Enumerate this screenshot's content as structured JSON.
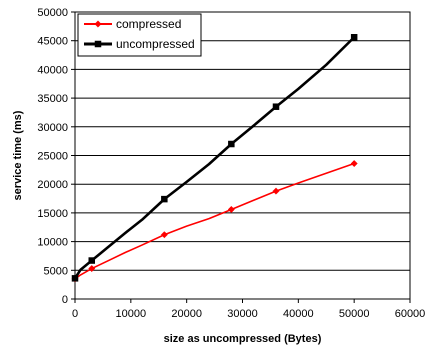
{
  "chart_data": {
    "type": "line",
    "title": "",
    "xlabel": "size as uncompressed (Bytes)",
    "ylabel": "service time (ms)",
    "xlim": [
      0,
      60000
    ],
    "ylim": [
      0,
      50000
    ],
    "x_ticks": [
      0,
      10000,
      20000,
      30000,
      40000,
      50000,
      60000
    ],
    "y_ticks": [
      0,
      5000,
      10000,
      15000,
      20000,
      25000,
      30000,
      35000,
      40000,
      45000,
      50000
    ],
    "x_tick_labels": [
      "0",
      "10000",
      "20000",
      "30000",
      "40000",
      "50000",
      "60000"
    ],
    "y_tick_labels": [
      "0",
      "5000",
      "10000",
      "15000",
      "20000",
      "25000",
      "30000",
      "35000",
      "40000",
      "45000",
      "50000"
    ],
    "grid": "horizontal major gridlines",
    "legend_position": "top-left",
    "series": [
      {
        "name": "compressed",
        "color": "#ff0000",
        "marker": "diamond",
        "points": [
          {
            "x": 0,
            "y": 3500
          },
          {
            "x": 1000,
            "y": 4200
          },
          {
            "x": 3000,
            "y": 5300
          },
          {
            "x": 6000,
            "y": 6700
          },
          {
            "x": 9000,
            "y": 8100
          },
          {
            "x": 12000,
            "y": 9400
          },
          {
            "x": 16000,
            "y": 11200
          },
          {
            "x": 20000,
            "y": 12700
          },
          {
            "x": 24000,
            "y": 14000
          },
          {
            "x": 28000,
            "y": 15600
          },
          {
            "x": 32000,
            "y": 17200
          },
          {
            "x": 36000,
            "y": 18800
          },
          {
            "x": 40000,
            "y": 20200
          },
          {
            "x": 45000,
            "y": 21900
          },
          {
            "x": 50000,
            "y": 23600
          }
        ],
        "marked_x": [
          0,
          3000,
          16000,
          28000,
          36000,
          50000
        ]
      },
      {
        "name": "uncompressed",
        "color": "#000000",
        "marker": "square",
        "points": [
          {
            "x": 0,
            "y": 3600
          },
          {
            "x": 1000,
            "y": 5100
          },
          {
            "x": 3000,
            "y": 6700
          },
          {
            "x": 6000,
            "y": 9100
          },
          {
            "x": 9000,
            "y": 11500
          },
          {
            "x": 12000,
            "y": 13800
          },
          {
            "x": 16000,
            "y": 17400
          },
          {
            "x": 20000,
            "y": 20400
          },
          {
            "x": 24000,
            "y": 23500
          },
          {
            "x": 28000,
            "y": 27000
          },
          {
            "x": 32000,
            "y": 30200
          },
          {
            "x": 36000,
            "y": 33500
          },
          {
            "x": 40000,
            "y": 36600
          },
          {
            "x": 45000,
            "y": 40800
          },
          {
            "x": 50000,
            "y": 45600
          }
        ],
        "marked_x": [
          0,
          3000,
          16000,
          28000,
          36000,
          50000
        ]
      }
    ]
  }
}
